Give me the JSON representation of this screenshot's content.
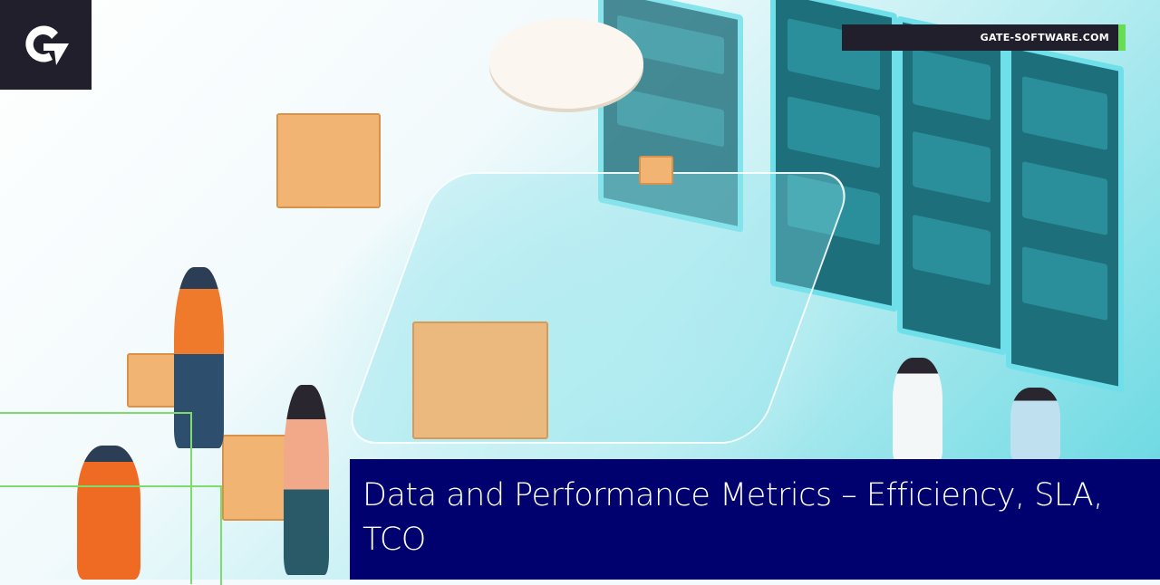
{
  "brand": {
    "logo_letter": "G",
    "website": "GATE-SOFTWARE.COM",
    "accent_color": "#66dd55",
    "dark_color": "#211f2b"
  },
  "headline": {
    "text": "Data and Performance Metrics – Efficiency, SLA, TCO",
    "background_color": "#00006f"
  },
  "illustration": {
    "subject": "warehouse-automation-scene"
  }
}
